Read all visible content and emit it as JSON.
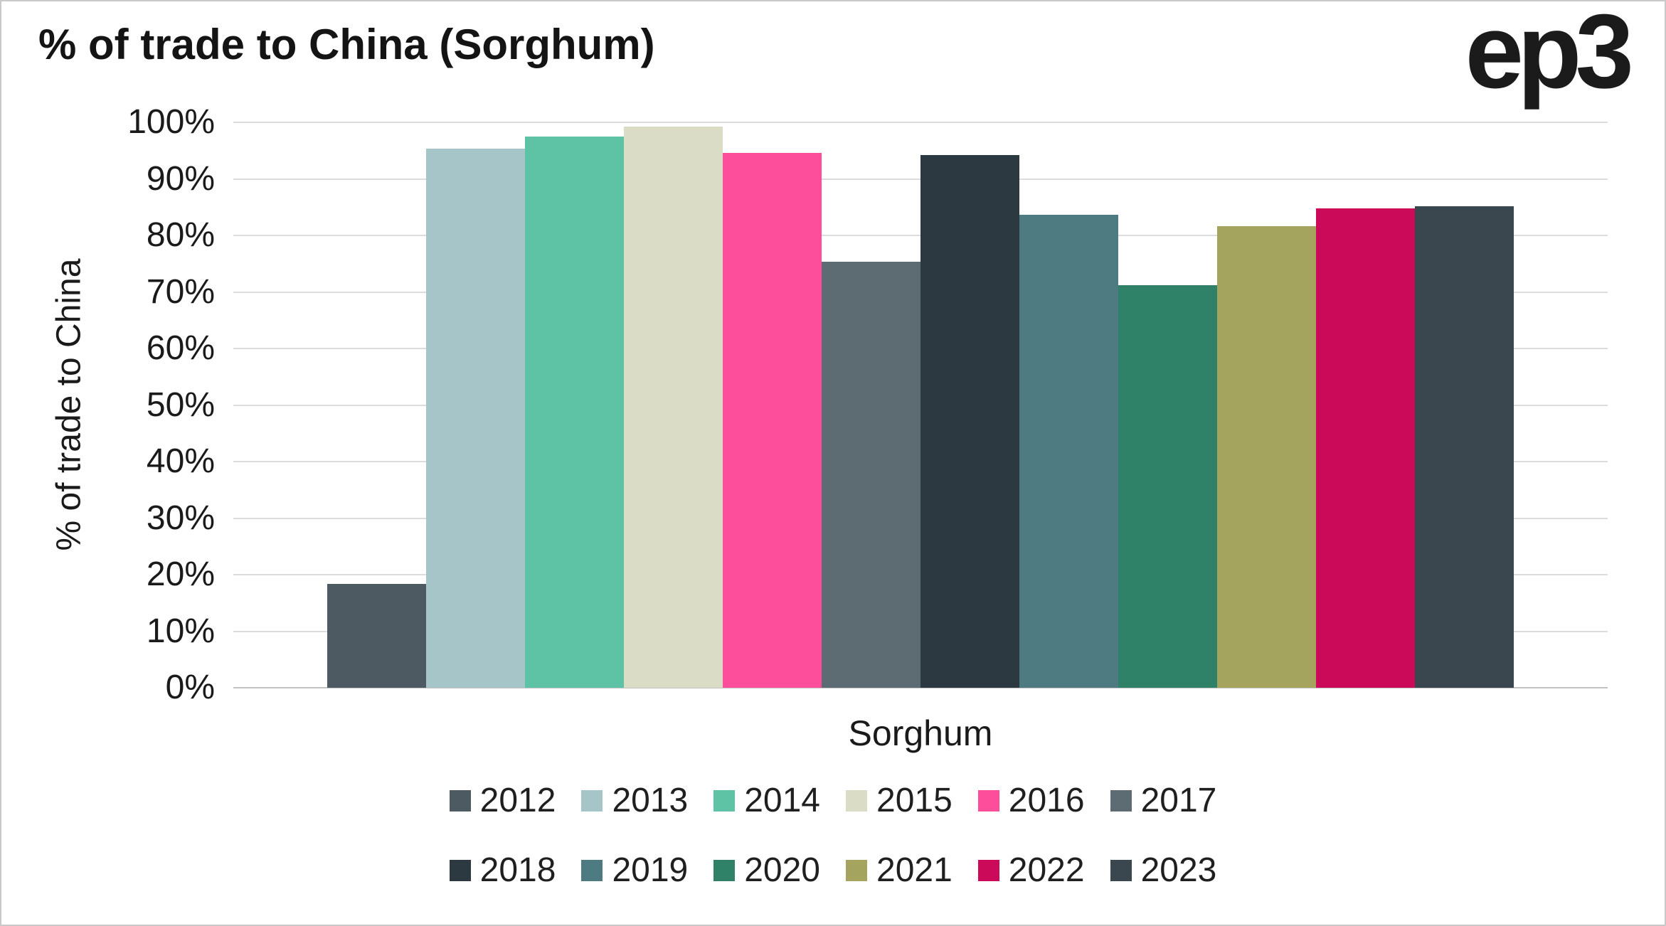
{
  "header": {
    "title": "% of trade to China (Sorghum)",
    "logo_text": "ep3"
  },
  "chart_data": {
    "type": "bar",
    "title": "% of trade to China (Sorghum)",
    "xlabel": "Sorghum",
    "ylabel": "% of trade to China",
    "ylim": [
      0,
      100
    ],
    "yticks": [
      0,
      10,
      20,
      30,
      40,
      50,
      60,
      70,
      80,
      90,
      100
    ],
    "ytick_suffix": "%",
    "grid": true,
    "legend_position": "bottom",
    "legend_rows": [
      [
        "2012",
        "2013",
        "2014",
        "2015",
        "2016",
        "2017"
      ],
      [
        "2018",
        "2019",
        "2020",
        "2021",
        "2022",
        "2023"
      ]
    ],
    "categories": [
      "Sorghum"
    ],
    "series": [
      {
        "name": "2012",
        "color": "#4D5A61",
        "values": [
          18.4
        ]
      },
      {
        "name": "2013",
        "color": "#A6C5C8",
        "values": [
          95.3
        ]
      },
      {
        "name": "2014",
        "color": "#5EC3A5",
        "values": [
          97.5
        ]
      },
      {
        "name": "2015",
        "color": "#DBDCC5",
        "values": [
          99.2
        ]
      },
      {
        "name": "2016",
        "color": "#FC4E9B",
        "values": [
          94.6
        ]
      },
      {
        "name": "2017",
        "color": "#5D6C73",
        "values": [
          75.3
        ]
      },
      {
        "name": "2018",
        "color": "#2C3940",
        "values": [
          94.2
        ]
      },
      {
        "name": "2019",
        "color": "#4E7B81",
        "values": [
          83.6
        ]
      },
      {
        "name": "2020",
        "color": "#2F8168",
        "values": [
          71.2
        ]
      },
      {
        "name": "2021",
        "color": "#A4A45F",
        "values": [
          81.7
        ]
      },
      {
        "name": "2022",
        "color": "#CB0B5A",
        "values": [
          84.8
        ]
      },
      {
        "name": "2023",
        "color": "#3A474E",
        "values": [
          85.1
        ]
      }
    ]
  }
}
